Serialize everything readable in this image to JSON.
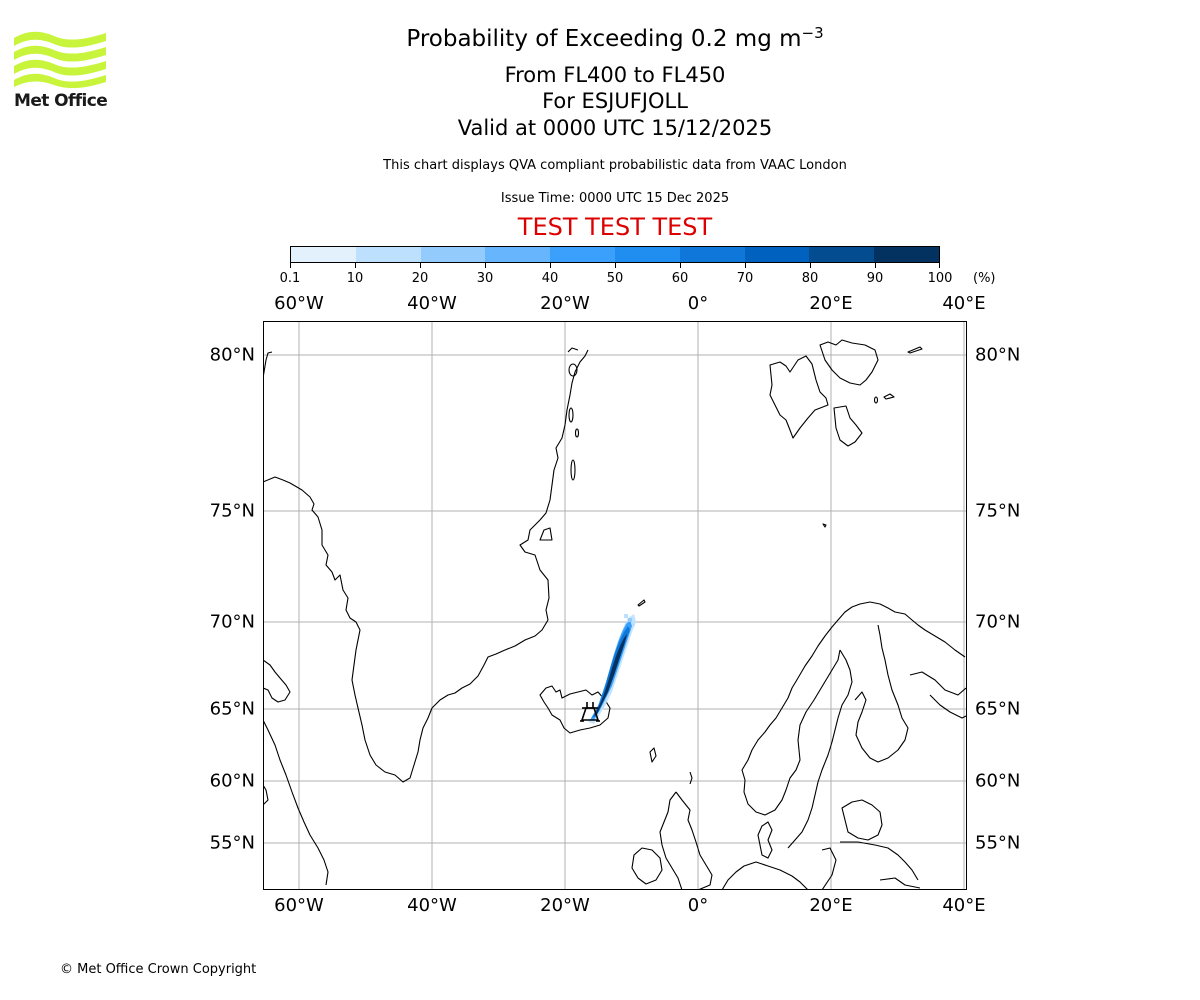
{
  "logo": {
    "name": "Met Office",
    "color": "#c8f53c"
  },
  "title": {
    "line1_main": "Probability of Exceeding 0.2 mg m",
    "line1_sup": "−3",
    "line2": "From FL400 to FL450",
    "line3": "For ESJUFJOLL",
    "line4": "Valid at 0000 UTC 15/12/2025"
  },
  "subtitle": "This chart displays QVA compliant probabilistic data from VAAC London",
  "issue_time": "Issue Time: 0000 UTC 15 Dec 2025",
  "test_banner": {
    "text": "TEST TEST TEST",
    "color": "#dd0000"
  },
  "colorbar": {
    "unit": "(%)",
    "ticks": [
      "0.1",
      "10",
      "20",
      "30",
      "40",
      "50",
      "60",
      "70",
      "80",
      "90",
      "100"
    ],
    "colors": [
      "#e3f1fd",
      "#bde0fe",
      "#94cbfd",
      "#67b5fc",
      "#3aa0fb",
      "#1f8ef0",
      "#0f77d9",
      "#0061be",
      "#024c8f",
      "#033260"
    ]
  },
  "map": {
    "lon_labels": [
      "60°W",
      "40°W",
      "20°W",
      "0°",
      "20°E",
      "40°E"
    ],
    "lat_labels": [
      "80°N",
      "75°N",
      "70°N",
      "65°N",
      "60°N",
      "55°N"
    ],
    "volcano": "ESJUFJOLL",
    "grid_color": "#b0b0b0"
  },
  "chart_data": {
    "type": "heatmap",
    "title": "Probability of Exceeding 0.2 mg m−3, From FL400 to FL450, For ESJUFJOLL, Valid at 0000 UTC 15/12/2025",
    "colorbar_label": "(%)",
    "colorbar_levels": [
      0.1,
      10,
      20,
      30,
      40,
      50,
      60,
      70,
      80,
      90,
      100
    ],
    "lon_ticks": [
      -60,
      -40,
      -20,
      0,
      20,
      40
    ],
    "lat_ticks": [
      80,
      75,
      70,
      65,
      60,
      55
    ],
    "extent": {
      "lon": [
        -65,
        41
      ],
      "lat": [
        52,
        82
      ]
    },
    "grid": true,
    "features": {
      "volcano_location": {
        "name": "ESJUFJOLL",
        "lon": -16.6,
        "lat": 64.3
      },
      "plume": {
        "description": "Narrow ash plume extending north-east from south-east Iceland toward ~70.3N 10W",
        "start": {
          "lon": -16.5,
          "lat": 64.4
        },
        "end": {
          "lon": -10.2,
          "lat": 70.2
        },
        "core_probability_pct": "80-100",
        "edge_probability_pct": "0.1-40"
      }
    }
  },
  "footer": "© Met Office Crown Copyright"
}
